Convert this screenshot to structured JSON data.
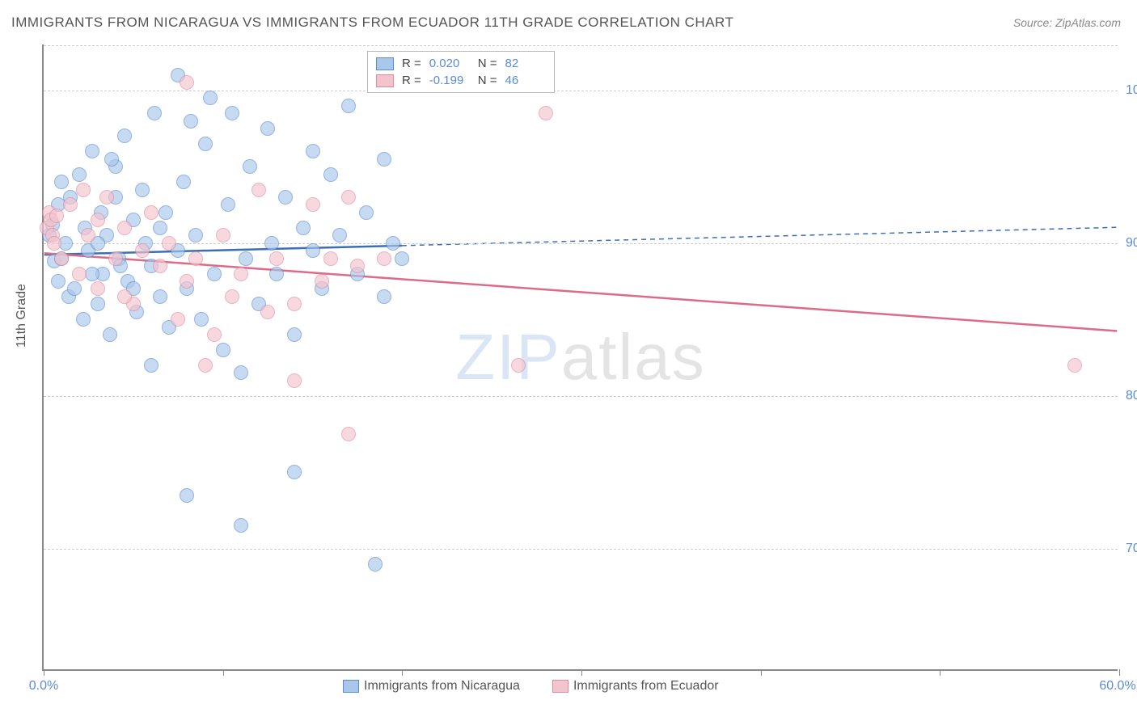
{
  "title": "IMMIGRANTS FROM NICARAGUA VS IMMIGRANTS FROM ECUADOR 11TH GRADE CORRELATION CHART",
  "source": "Source: ZipAtlas.com",
  "ylabel": "11th Grade",
  "watermark": {
    "bold": "ZIP",
    "thin": "atlas"
  },
  "chart": {
    "type": "scatter",
    "background_color": "#ffffff",
    "axis_color": "#888888",
    "grid_color": "#cccccc",
    "xlim": [
      0,
      60
    ],
    "ylim": [
      62,
      103
    ],
    "xtick_step": 10,
    "yticks": [
      70,
      80,
      90,
      100
    ],
    "xtick_labels": {
      "first": "0.0%",
      "last": "60.0%"
    },
    "ytick_labels": [
      "70.0%",
      "80.0%",
      "90.0%",
      "100.0%"
    ],
    "point_radius": 9,
    "point_opacity": 0.65
  },
  "series": [
    {
      "name": "Immigrants from Nicaragua",
      "fill_color": "#a9c7ea",
      "stroke_color": "#5b8bd4",
      "line_color": "#3a6fb7",
      "R": "0.020",
      "N": "82",
      "trend": {
        "x1": 0,
        "y1": 89.2,
        "x2": 60,
        "y2": 91.0,
        "solid_until_x": 20,
        "dash": "6,5",
        "width": 2.5
      },
      "points": [
        [
          0.3,
          90.5
        ],
        [
          0.5,
          91.2
        ],
        [
          0.6,
          88.8
        ],
        [
          0.8,
          92.5
        ],
        [
          1.0,
          89.0
        ],
        [
          1.2,
          90.0
        ],
        [
          1.4,
          86.5
        ],
        [
          1.5,
          93.0
        ],
        [
          1.7,
          87.0
        ],
        [
          2.0,
          94.5
        ],
        [
          2.2,
          85.0
        ],
        [
          2.3,
          91.0
        ],
        [
          2.5,
          89.5
        ],
        [
          2.7,
          96.0
        ],
        [
          3.0,
          86.0
        ],
        [
          3.2,
          92.0
        ],
        [
          3.3,
          88.0
        ],
        [
          3.5,
          90.5
        ],
        [
          3.7,
          84.0
        ],
        [
          4.0,
          95.0
        ],
        [
          4.2,
          89.0
        ],
        [
          4.5,
          97.0
        ],
        [
          4.7,
          87.5
        ],
        [
          5.0,
          91.5
        ],
        [
          5.2,
          85.5
        ],
        [
          5.5,
          93.5
        ],
        [
          5.7,
          90.0
        ],
        [
          6.0,
          88.5
        ],
        [
          6.2,
          98.5
        ],
        [
          6.5,
          86.5
        ],
        [
          6.8,
          92.0
        ],
        [
          7.0,
          84.5
        ],
        [
          7.5,
          101.0
        ],
        [
          7.5,
          89.5
        ],
        [
          7.8,
          94.0
        ],
        [
          8.0,
          87.0
        ],
        [
          8.2,
          98.0
        ],
        [
          8.5,
          90.5
        ],
        [
          8.8,
          85.0
        ],
        [
          9.0,
          96.5
        ],
        [
          9.3,
          99.5
        ],
        [
          9.5,
          88.0
        ],
        [
          8.0,
          73.5
        ],
        [
          10.0,
          83.0
        ],
        [
          10.3,
          92.5
        ],
        [
          10.5,
          98.5
        ],
        [
          11.0,
          81.5
        ],
        [
          11.0,
          71.5
        ],
        [
          11.3,
          89.0
        ],
        [
          11.5,
          95.0
        ],
        [
          12.0,
          86.0
        ],
        [
          12.5,
          97.5
        ],
        [
          12.7,
          90.0
        ],
        [
          13.0,
          88.0
        ],
        [
          13.5,
          93.0
        ],
        [
          14.0,
          84.0
        ],
        [
          14.0,
          75.0
        ],
        [
          14.5,
          91.0
        ],
        [
          15.0,
          96.0
        ],
        [
          15.0,
          89.5
        ],
        [
          15.5,
          87.0
        ],
        [
          16.0,
          94.5
        ],
        [
          16.5,
          90.5
        ],
        [
          17.0,
          99.0
        ],
        [
          17.5,
          88.0
        ],
        [
          18.0,
          92.0
        ],
        [
          18.5,
          69.0
        ],
        [
          19.0,
          95.5
        ],
        [
          19.0,
          86.5
        ],
        [
          19.5,
          90.0
        ],
        [
          20.0,
          100.5
        ],
        [
          20.0,
          89.0
        ],
        [
          6.0,
          82.0
        ],
        [
          3.8,
          95.5
        ],
        [
          4.0,
          93.0
        ],
        [
          5.0,
          87.0
        ],
        [
          1.0,
          94.0
        ],
        [
          0.8,
          87.5
        ],
        [
          2.7,
          88.0
        ],
        [
          6.5,
          91.0
        ],
        [
          3.0,
          90.0
        ],
        [
          4.3,
          88.5
        ]
      ]
    },
    {
      "name": "Immigrants from Ecuador",
      "fill_color": "#f4c4ce",
      "stroke_color": "#e08ba0",
      "line_color": "#dc6b88",
      "R": "-0.199",
      "N": "46",
      "trend": {
        "x1": 0,
        "y1": 89.3,
        "x2": 60,
        "y2": 84.2,
        "solid_until_x": 60,
        "dash": null,
        "width": 2.5
      },
      "points": [
        [
          0.2,
          91.0
        ],
        [
          0.3,
          92.0
        ],
        [
          0.4,
          91.5
        ],
        [
          0.5,
          90.5
        ],
        [
          0.6,
          90.0
        ],
        [
          0.7,
          91.8
        ],
        [
          1.0,
          89.0
        ],
        [
          1.5,
          92.5
        ],
        [
          2.0,
          88.0
        ],
        [
          2.5,
          90.5
        ],
        [
          3.0,
          87.0
        ],
        [
          3.5,
          93.0
        ],
        [
          4.0,
          89.0
        ],
        [
          4.5,
          91.0
        ],
        [
          5.0,
          86.0
        ],
        [
          5.5,
          89.5
        ],
        [
          6.0,
          92.0
        ],
        [
          6.5,
          88.5
        ],
        [
          7.0,
          90.0
        ],
        [
          7.5,
          85.0
        ],
        [
          8.0,
          87.5
        ],
        [
          8.5,
          89.0
        ],
        [
          8.0,
          100.5
        ],
        [
          9.5,
          84.0
        ],
        [
          10.0,
          90.5
        ],
        [
          10.5,
          86.5
        ],
        [
          11.0,
          88.0
        ],
        [
          12.0,
          93.5
        ],
        [
          12.5,
          85.5
        ],
        [
          13.0,
          89.0
        ],
        [
          14.0,
          86.0
        ],
        [
          14.0,
          81.0
        ],
        [
          15.0,
          92.5
        ],
        [
          15.5,
          87.5
        ],
        [
          16.0,
          89.0
        ],
        [
          17.0,
          93.0
        ],
        [
          9.0,
          82.0
        ],
        [
          17.0,
          77.5
        ],
        [
          17.5,
          88.5
        ],
        [
          19.0,
          89.0
        ],
        [
          26.5,
          82.0
        ],
        [
          28.0,
          98.5
        ],
        [
          57.5,
          82.0
        ],
        [
          3.0,
          91.5
        ],
        [
          4.5,
          86.5
        ],
        [
          2.2,
          93.5
        ]
      ]
    }
  ],
  "legend_top": {
    "r_label": "R =",
    "n_label": "N ="
  }
}
